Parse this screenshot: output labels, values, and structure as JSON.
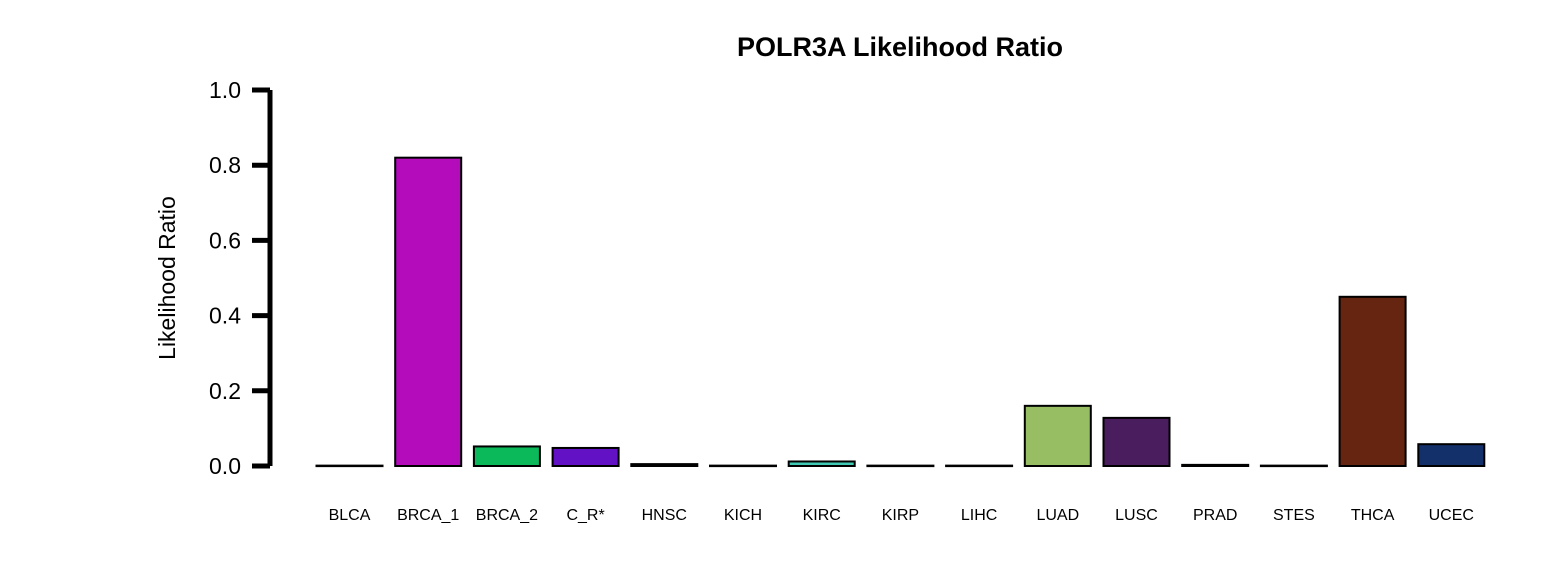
{
  "chart_data": {
    "type": "bar",
    "title": "POLR3A Likelihood Ratio",
    "xlabel": "",
    "ylabel": "Likelihood Ratio",
    "ylim": [
      0,
      1.0
    ],
    "yticks": [
      "0.0",
      "0.2",
      "0.4",
      "0.6",
      "0.8",
      "1.0"
    ],
    "grid": false,
    "categories": [
      "BLCA",
      "BRCA_1",
      "BRCA_2",
      "C_R*",
      "HNSC",
      "KICH",
      "KIRC",
      "KIRP",
      "LIHC",
      "LUAD",
      "LUSC",
      "PRAD",
      "STES",
      "THCA",
      "UCEC"
    ],
    "values": [
      0.001,
      0.82,
      0.052,
      0.048,
      0.005,
      0.001,
      0.012,
      0.001,
      0.001,
      0.16,
      0.128,
      0.003,
      0.001,
      0.45,
      0.058
    ],
    "colors": [
      "#FF9966",
      "#B40BBB",
      "#0BB85A",
      "#6311C4",
      "#C7B21D",
      "#F4A8CC",
      "#40C9B5",
      "#F20A4B",
      "#9E1E55",
      "#97BE63",
      "#4A1D5F",
      "#21B0CF",
      "#CC7A18",
      "#662511",
      "#13306A"
    ]
  }
}
